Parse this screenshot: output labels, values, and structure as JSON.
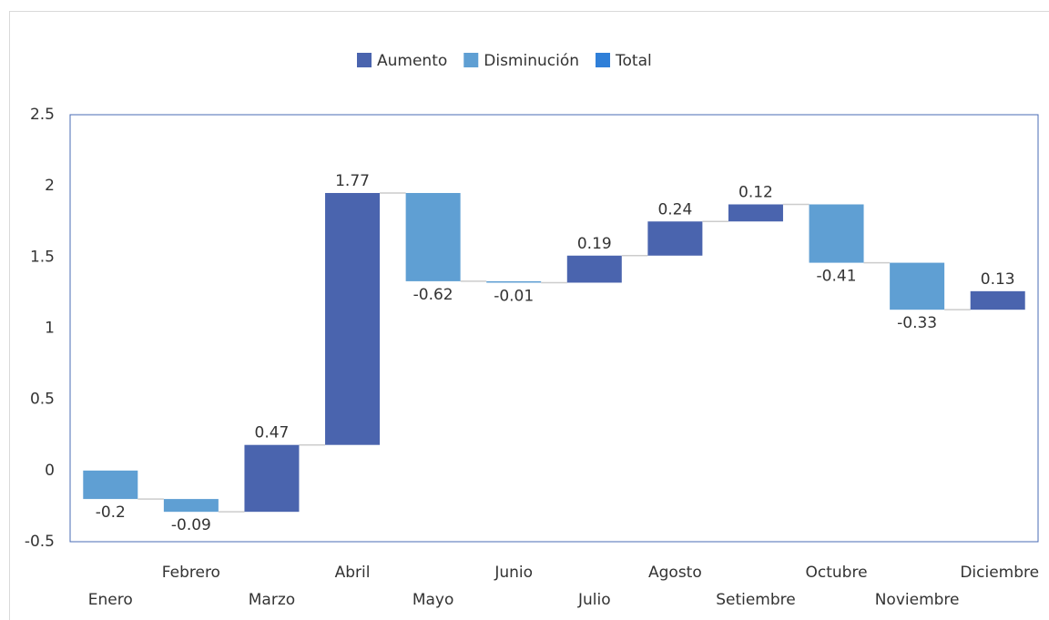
{
  "chart_data": {
    "type": "waterfall",
    "categories": [
      "Enero",
      "Febrero",
      "Marzo",
      "Abril",
      "Mayo",
      "Junio",
      "Julio",
      "Agosto",
      "Setiembre",
      "Octubre",
      "Noviembre",
      "Diciembre"
    ],
    "values": [
      -0.2,
      -0.09,
      0.47,
      1.77,
      -0.62,
      -0.01,
      0.19,
      0.24,
      0.12,
      -0.41,
      -0.33,
      0.13
    ],
    "legend": [
      {
        "name": "Aumento",
        "color": "#4a64ae"
      },
      {
        "name": "Disminución",
        "color": "#5f9fd3"
      },
      {
        "name": "Total",
        "color": "#2f7fd8"
      }
    ],
    "ylim": [
      -0.5,
      2.5
    ],
    "yticks": [
      -0.5,
      0,
      0.5,
      1,
      1.5,
      2,
      2.5
    ]
  }
}
